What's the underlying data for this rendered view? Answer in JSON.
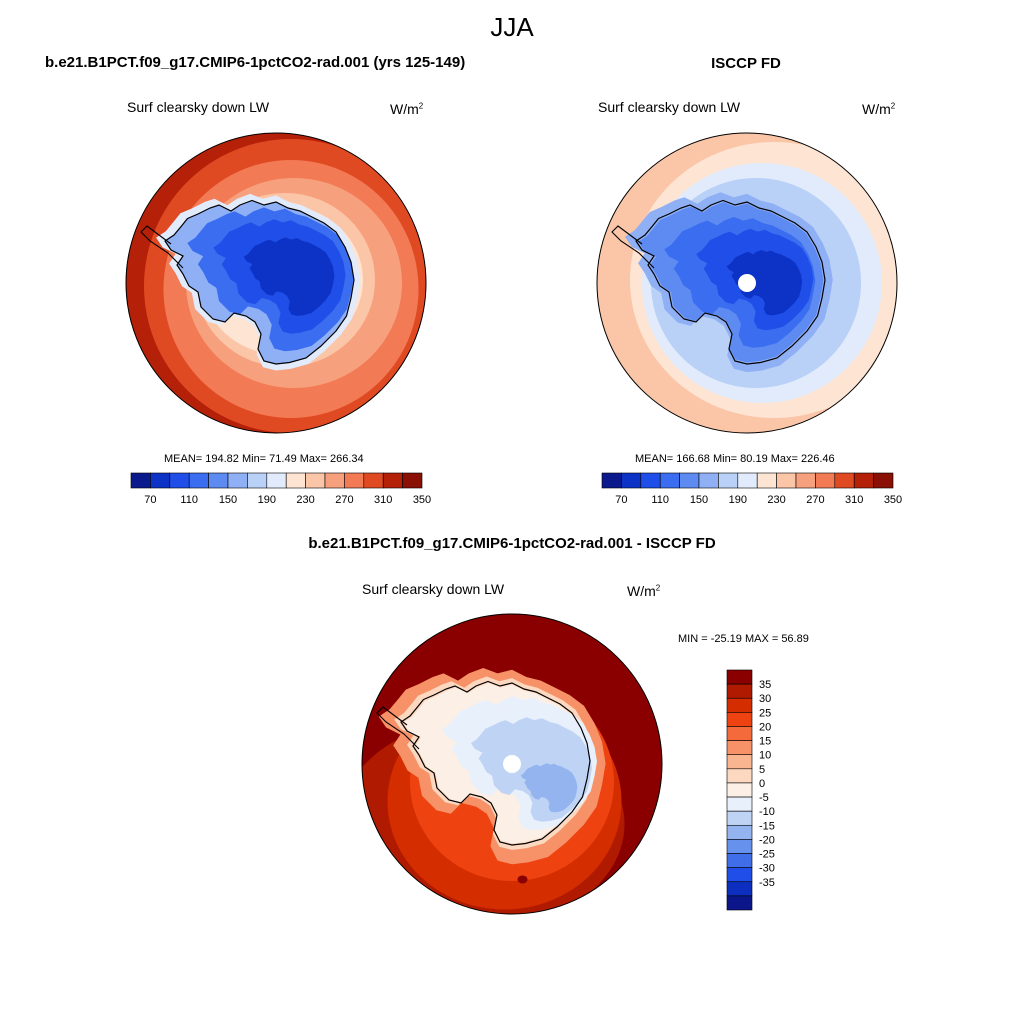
{
  "figure": {
    "season": "JJA",
    "variable": "Surf clearsky down LW",
    "units_base": "W/m",
    "units_exp": "2"
  },
  "panels": {
    "model": {
      "title": "b.e21.B1PCT.f09_g17.CMIP6-1pctCO2-rad.001 (yrs 125-149)",
      "variable": "Surf clearsky down LW",
      "stats": "MEAN= 194.82  Min=  71.49  Max= 266.34"
    },
    "obs": {
      "title": "ISCCP FD",
      "variable": "Surf clearsky down LW",
      "stats": "MEAN= 166.68  Min=  80.19  Max= 226.46"
    },
    "diff": {
      "title": "b.e21.B1PCT.f09_g17.CMIP6-1pctCO2-rad.001 - ISCCP FD",
      "variable": "Surf clearsky down LW",
      "stats": "MIN = -25.19 MAX =  56.89"
    }
  },
  "chart_data": [
    {
      "type": "heatmap",
      "projection": "south-polar-stereographic",
      "title": "b.e21.B1PCT.f09_g17.CMIP6-1pctCO2-rad.001 (yrs 125-149)",
      "variable": "Surf clearsky down LW",
      "units": "W/m^2",
      "mean": 194.82,
      "min": 71.49,
      "max": 266.34,
      "colorbar": {
        "levels": [
          70,
          90,
          110,
          130,
          150,
          170,
          190,
          210,
          230,
          250,
          270,
          290,
          310,
          330,
          350
        ],
        "tick_labels": [
          "70",
          "110",
          "150",
          "190",
          "230",
          "270",
          "310",
          "350"
        ],
        "colors": [
          "#0a1a8c",
          "#0d32c6",
          "#1f4fe8",
          "#3b6df0",
          "#5d8bf2",
          "#8fb0f5",
          "#b9d0f7",
          "#e1ebfb",
          "#fde4d3",
          "#fbc6a8",
          "#f7a07d",
          "#f27a55",
          "#e04a23",
          "#b52008",
          "#8a0f04"
        ]
      },
      "field_zones": [
        {
          "level": 350,
          "bin": 13
        },
        {
          "level": 330,
          "bin": 12
        },
        {
          "level": 300,
          "bin": 11
        },
        {
          "level": 250,
          "bin": 10
        },
        {
          "level": 220,
          "bin": 9
        },
        {
          "level": 200,
          "bin": 8
        },
        {
          "level": 180,
          "bin": 7
        },
        {
          "level": 150,
          "bin": 5
        },
        {
          "level": 120,
          "bin": 3
        },
        {
          "level": 100,
          "bin": 2
        },
        {
          "level": 80,
          "bin": 1
        }
      ]
    },
    {
      "type": "heatmap",
      "projection": "south-polar-stereographic",
      "title": "ISCCP FD",
      "variable": "Surf clearsky down LW",
      "units": "W/m^2",
      "mean": 166.68,
      "min": 80.19,
      "max": 226.46,
      "colorbar": {
        "levels": [
          70,
          90,
          110,
          130,
          150,
          170,
          190,
          210,
          230,
          250,
          270,
          290,
          310,
          330,
          350
        ],
        "tick_labels": [
          "70",
          "110",
          "150",
          "190",
          "230",
          "270",
          "310",
          "350"
        ],
        "colors": [
          "#0a1a8c",
          "#0d32c6",
          "#1f4fe8",
          "#3b6df0",
          "#5d8bf2",
          "#8fb0f5",
          "#b9d0f7",
          "#e1ebfb",
          "#fde4d3",
          "#fbc6a8",
          "#f7a07d",
          "#f27a55",
          "#e04a23",
          "#b52008",
          "#8a0f04"
        ]
      },
      "field_zones": [
        {
          "level": 230,
          "bin": 9
        },
        {
          "level": 215,
          "bin": 8
        },
        {
          "level": 200,
          "bin": 7
        },
        {
          "level": 180,
          "bin": 6
        },
        {
          "level": 160,
          "bin": 5
        },
        {
          "level": 140,
          "bin": 4
        },
        {
          "level": 120,
          "bin": 3
        },
        {
          "level": 100,
          "bin": 2
        },
        {
          "level": 85,
          "bin": 1
        }
      ],
      "missing_data_at_pole": true
    },
    {
      "type": "heatmap",
      "projection": "south-polar-stereographic",
      "title": "b.e21.B1PCT.f09_g17.CMIP6-1pctCO2-rad.001 - ISCCP FD",
      "variable": "Surf clearsky down LW",
      "units": "W/m^2",
      "min": -25.19,
      "max": 56.89,
      "colorbar": {
        "orientation": "vertical",
        "tick_labels": [
          "35",
          "30",
          "25",
          "20",
          "15",
          "10",
          "5",
          "0",
          "-5",
          "-10",
          "-15",
          "-20",
          "-25",
          "-30",
          "-35"
        ],
        "colors": [
          "#8a0000",
          "#b01a00",
          "#d42d00",
          "#ee4210",
          "#f46a3a",
          "#f79268",
          "#f9b590",
          "#fcd8c0",
          "#fcefe6",
          "#e8f0fb",
          "#bfd3f5",
          "#93b4ef",
          "#6691ec",
          "#3f6ee8",
          "#1f4fe8",
          "#0d2fc0",
          "#0a168a"
        ]
      },
      "field_zones": [
        {
          "level": 40,
          "bin": 0
        },
        {
          "level": 32,
          "bin": 1
        },
        {
          "level": 27,
          "bin": 2
        },
        {
          "level": 22,
          "bin": 3
        },
        {
          "level": 15,
          "bin": 5
        },
        {
          "level": 7,
          "bin": 7
        },
        {
          "level": 2,
          "bin": 8
        },
        {
          "level": -3,
          "bin": 9
        },
        {
          "level": -8,
          "bin": 10
        },
        {
          "level": -14,
          "bin": 11
        }
      ],
      "missing_data_at_pole": true
    }
  ]
}
